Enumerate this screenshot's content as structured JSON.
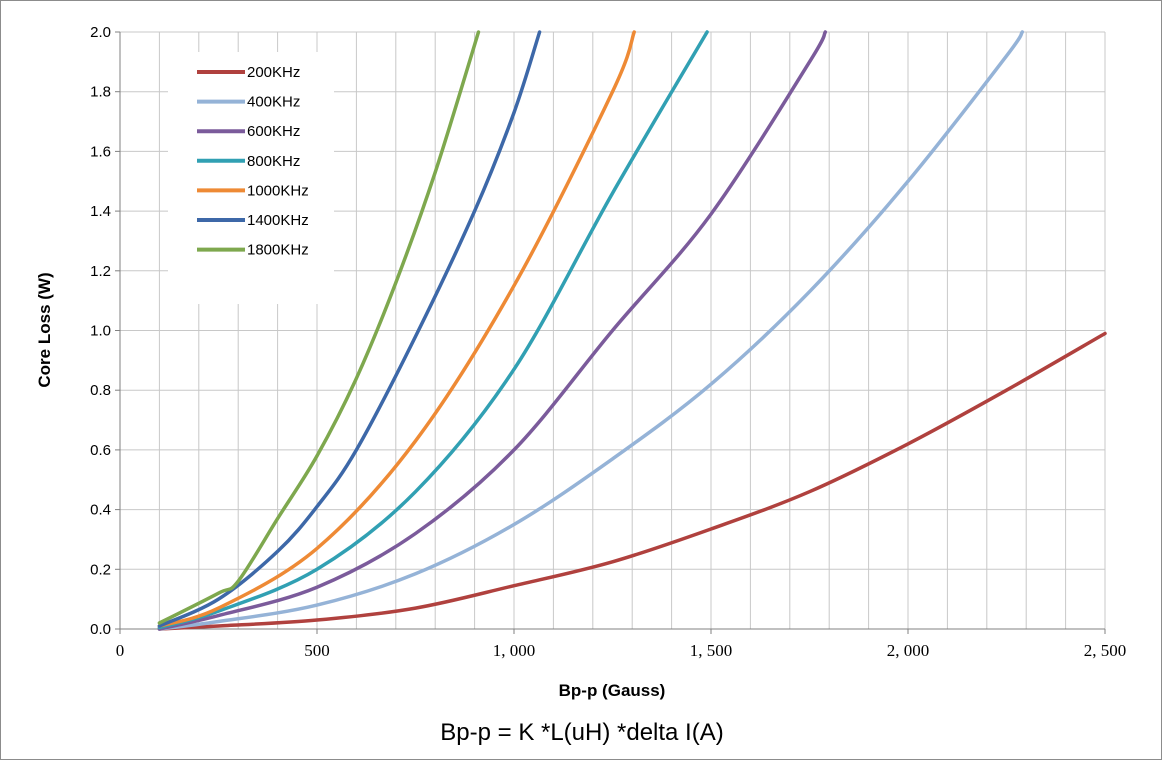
{
  "chart_data": {
    "type": "line",
    "xlabel": "Bp-p (Gauss)",
    "ylabel": "Core Loss (W)",
    "caption": "Bp-p = K *L(uH) *delta I(A)",
    "xlim": [
      0,
      2500
    ],
    "ylim": [
      0,
      2.0
    ],
    "x_ticks": [
      0,
      500,
      1000,
      1500,
      2000,
      2500
    ],
    "x_tick_labels": [
      "0",
      "500",
      "1, 000",
      "1, 500",
      "2, 000",
      "2, 500"
    ],
    "y_ticks": [
      0,
      0.2,
      0.4,
      0.6,
      0.8,
      1.0,
      1.2,
      1.4,
      1.6,
      1.8,
      2.0
    ],
    "y_tick_labels": [
      "0.0",
      "0.2",
      "0.4",
      "0.6",
      "0.8",
      "1.0",
      "1.2",
      "1.4",
      "1.6",
      "1.8",
      "2.0"
    ],
    "x_grid_step": 100,
    "grid": true,
    "legend_position": "top-left",
    "series": [
      {
        "name": "200KHz",
        "color": "#b0413e",
        "x": [
          100,
          250,
          500,
          750,
          1000,
          1250,
          1500,
          1750,
          2000,
          2250,
          2500
        ],
        "y": [
          0.0,
          0.01,
          0.03,
          0.07,
          0.145,
          0.225,
          0.335,
          0.46,
          0.62,
          0.8,
          0.99
        ]
      },
      {
        "name": "400KHz",
        "color": "#95b3d7",
        "x": [
          100,
          250,
          500,
          750,
          1000,
          1250,
          1500,
          1750,
          2000,
          2250,
          2290
        ],
        "y": [
          0.0,
          0.025,
          0.08,
          0.185,
          0.35,
          0.57,
          0.82,
          1.13,
          1.5,
          1.92,
          2.0
        ]
      },
      {
        "name": "600KHz",
        "color": "#7b5b9b",
        "x": [
          100,
          250,
          500,
          750,
          1000,
          1250,
          1500,
          1750,
          1790
        ],
        "y": [
          0.0,
          0.045,
          0.14,
          0.32,
          0.6,
          1.0,
          1.39,
          1.9,
          2.0
        ]
      },
      {
        "name": "800KHz",
        "color": "#31a0b3",
        "x": [
          100,
          250,
          500,
          750,
          1000,
          1250,
          1490
        ],
        "y": [
          0.005,
          0.06,
          0.2,
          0.46,
          0.87,
          1.46,
          2.0
        ]
      },
      {
        "name": "1000KHz",
        "color": "#ee8a35",
        "x": [
          100,
          250,
          500,
          750,
          1000,
          1250,
          1305
        ],
        "y": [
          0.01,
          0.07,
          0.27,
          0.63,
          1.15,
          1.8,
          2.0
        ]
      },
      {
        "name": "1400KHz",
        "color": "#3d68a8",
        "x": [
          100,
          250,
          400,
          500,
          600,
          750,
          900,
          1000,
          1065
        ],
        "y": [
          0.01,
          0.1,
          0.26,
          0.41,
          0.6,
          0.98,
          1.4,
          1.73,
          2.0
        ]
      },
      {
        "name": "1800KHz",
        "color": "#7ea84e",
        "x": [
          100,
          250,
          300,
          400,
          500,
          600,
          700,
          800,
          910
        ],
        "y": [
          0.02,
          0.12,
          0.16,
          0.37,
          0.58,
          0.84,
          1.16,
          1.53,
          2.0
        ]
      }
    ]
  }
}
